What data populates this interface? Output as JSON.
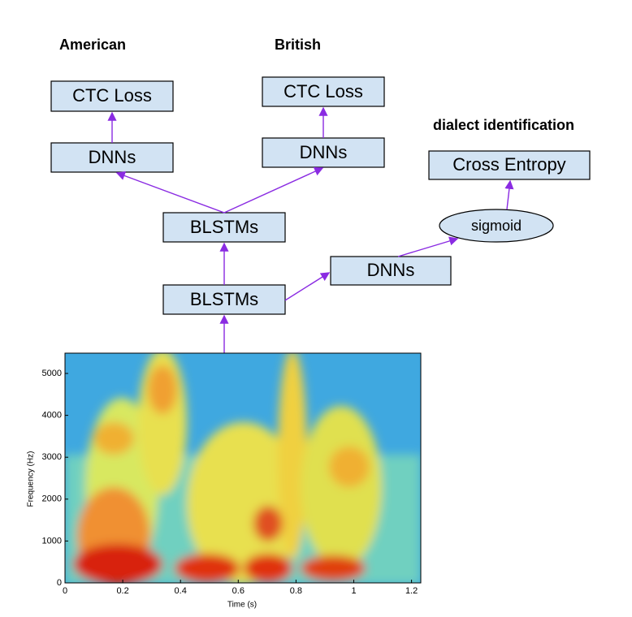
{
  "headings": {
    "american": "American",
    "british": "British",
    "dialect": "dialect identification"
  },
  "nodes": [
    {
      "label": "CTC Loss"
    },
    {
      "label": "CTC Loss"
    },
    {
      "label": "DNNs"
    },
    {
      "label": "DNNs"
    },
    {
      "label": "Cross Entropy"
    },
    {
      "label": "sigmoid"
    },
    {
      "label": "BLSTMs"
    },
    {
      "label": "DNNs"
    },
    {
      "label": "BLSTMs"
    }
  ],
  "spectrogram": {
    "ylabel": "Frequency (Hz)",
    "xlabel": "Time (s)",
    "xticks": [
      0,
      0.2,
      0.4,
      0.6,
      0.8,
      1,
      1.2
    ],
    "yticks": [
      0,
      1000,
      2000,
      3000,
      4000,
      5000
    ]
  }
}
